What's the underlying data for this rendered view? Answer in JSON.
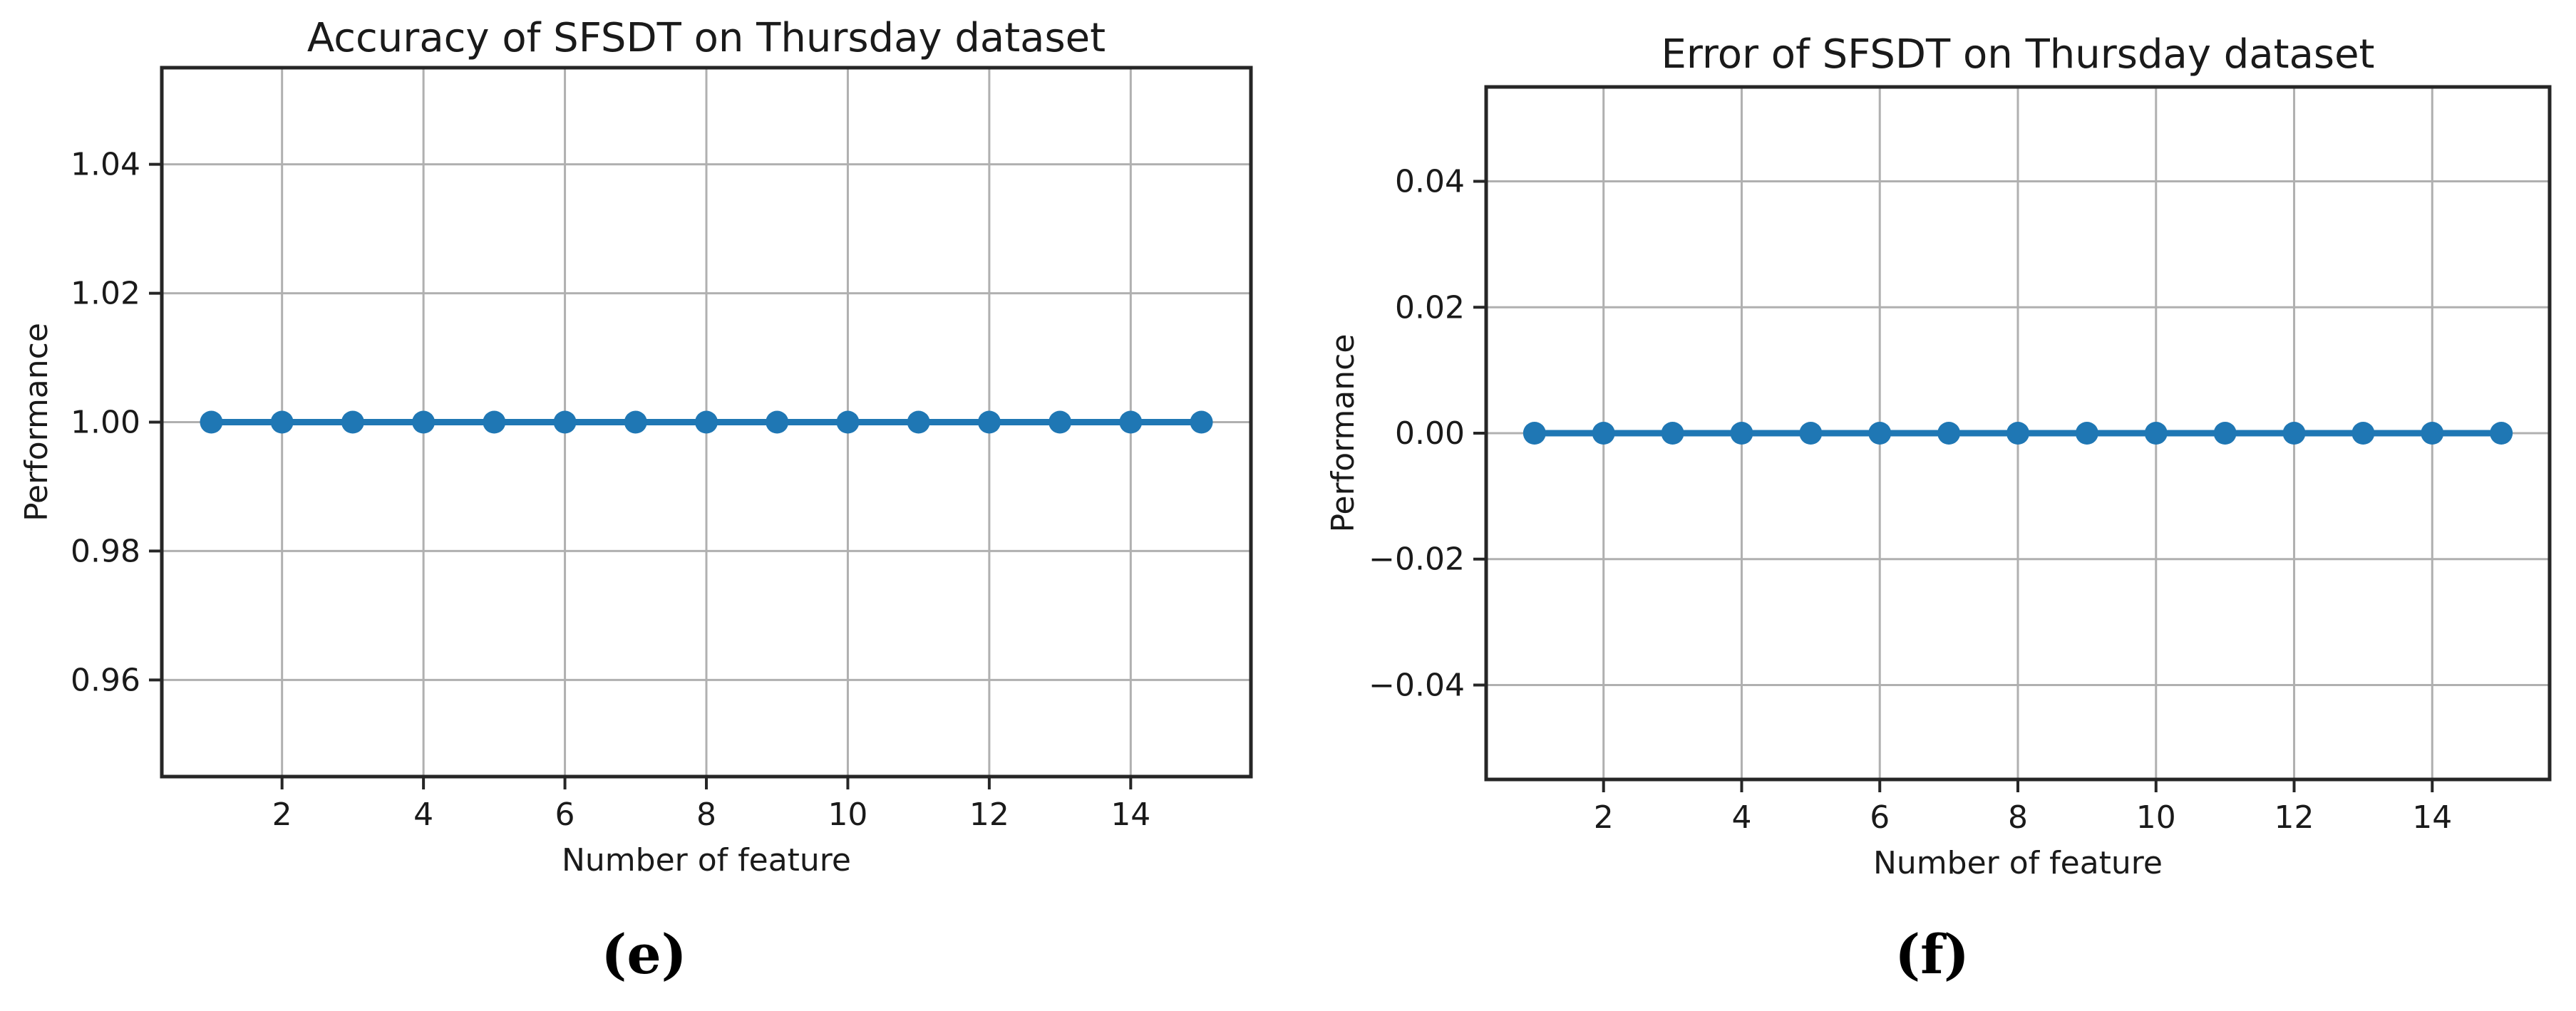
{
  "figure": {
    "background": "#ffffff",
    "style": {
      "line_color": "#1f77b4",
      "marker_color": "#1f77b4",
      "grid_color": "#b0b0b0",
      "spine_color": "#262626",
      "text_color": "#1a1a1a"
    }
  },
  "chart_data": [
    {
      "type": "line",
      "title": "Accuracy of SFSDT on Thursday dataset",
      "xlabel": "Number of feature",
      "ylabel": "Performance",
      "caption": "(e)",
      "x": [
        1,
        2,
        3,
        4,
        5,
        6,
        7,
        8,
        9,
        10,
        11,
        12,
        13,
        14,
        15
      ],
      "y": [
        1.0,
        1.0,
        1.0,
        1.0,
        1.0,
        1.0,
        1.0,
        1.0,
        1.0,
        1.0,
        1.0,
        1.0,
        1.0,
        1.0,
        1.0
      ],
      "xlim": [
        0.3,
        15.7
      ],
      "ylim": [
        0.945,
        1.055
      ],
      "xticks": [
        2,
        4,
        6,
        8,
        10,
        12,
        14
      ],
      "xtick_labels": [
        "2",
        "4",
        "6",
        "8",
        "10",
        "12",
        "14"
      ],
      "yticks": [
        0.96,
        0.98,
        1.0,
        1.02,
        1.04
      ],
      "ytick_labels": [
        "0.96",
        "0.98",
        "1.00",
        "1.02",
        "1.04"
      ],
      "grid": true,
      "legend": "none",
      "marker": "o"
    },
    {
      "type": "line",
      "title": "Error of SFSDT on Thursday dataset",
      "xlabel": "Number of feature",
      "ylabel": "Performance",
      "caption": "(f)",
      "x": [
        1,
        2,
        3,
        4,
        5,
        6,
        7,
        8,
        9,
        10,
        11,
        12,
        13,
        14,
        15
      ],
      "y": [
        0.0,
        0.0,
        0.0,
        0.0,
        0.0,
        0.0,
        0.0,
        0.0,
        0.0,
        0.0,
        0.0,
        0.0,
        0.0,
        0.0,
        0.0
      ],
      "xlim": [
        0.3,
        15.7
      ],
      "ylim": [
        -0.055,
        0.055
      ],
      "xticks": [
        2,
        4,
        6,
        8,
        10,
        12,
        14
      ],
      "xtick_labels": [
        "2",
        "4",
        "6",
        "8",
        "10",
        "12",
        "14"
      ],
      "yticks": [
        -0.04,
        -0.02,
        0.0,
        0.02,
        0.04
      ],
      "ytick_labels": [
        "−0.04",
        "−0.02",
        "0.00",
        "0.02",
        "0.04"
      ],
      "grid": true,
      "legend": "none",
      "marker": "o"
    }
  ]
}
